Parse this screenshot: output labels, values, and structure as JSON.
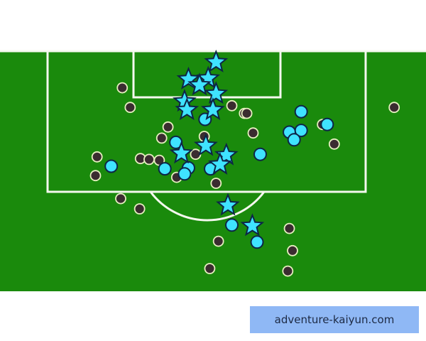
{
  "chart_data": {
    "type": "scatter",
    "title": "",
    "xlabel": "",
    "ylabel": "",
    "units": "metres (x: from goal centre, +right; y: distance from goal line)",
    "grid": false,
    "legend": "none",
    "colors": {
      "pitch": "#1a8a0c",
      "lines": "#f4f8ee",
      "goal": "#3fe3ff",
      "on_target": "#3fe3ff",
      "off_target": "#3a2c30",
      "marker_edge": "#0d2547",
      "off_edge": "#e6f0c0"
    },
    "series": [
      {
        "marker": "star",
        "points": [
          [
            1.2,
            1.3
          ],
          [
            -2.3,
            3.3
          ],
          [
            0.2,
            3.2
          ],
          [
            -0.9,
            4.0
          ],
          [
            1.2,
            5.0
          ],
          [
            -2.8,
            5.9
          ],
          [
            -2.5,
            6.9
          ],
          [
            0.8,
            6.9
          ],
          [
            -0.1,
            11.1
          ],
          [
            -3.2,
            12.0
          ],
          [
            2.5,
            12.2
          ],
          [
            1.7,
            13.3
          ],
          [
            2.7,
            18.1
          ],
          [
            5.8,
            20.5
          ]
        ]
      },
      {
        "marker": "cyan-circle",
        "points": [
          [
            -0.2,
            8.0
          ],
          [
            -3.9,
            10.7
          ],
          [
            -12.1,
            13.5
          ],
          [
            -5.3,
            13.8
          ],
          [
            -2.3,
            13.7
          ],
          [
            -2.8,
            14.4
          ],
          [
            0.5,
            13.8
          ],
          [
            6.8,
            12.1
          ],
          [
            12.0,
            7.1
          ],
          [
            10.5,
            9.5
          ],
          [
            12.0,
            9.3
          ],
          [
            11.1,
            10.4
          ],
          [
            15.3,
            8.6
          ],
          [
            3.2,
            20.4
          ],
          [
            6.4,
            22.4
          ]
        ]
      },
      {
        "marker": "dark-circle",
        "points": [
          [
            -10.7,
            4.3
          ],
          [
            -9.7,
            6.6
          ],
          [
            3.2,
            6.4
          ],
          [
            4.8,
            7.3
          ],
          [
            5.1,
            7.3
          ],
          [
            5.9,
            9.6
          ],
          [
            -4.9,
            8.9
          ],
          [
            -5.7,
            10.2
          ],
          [
            -0.3,
            10.0
          ],
          [
            -13.9,
            12.4
          ],
          [
            -14.1,
            14.6
          ],
          [
            -8.4,
            12.6
          ],
          [
            -7.3,
            12.7
          ],
          [
            -6.0,
            12.8
          ],
          [
            -1.4,
            12.1
          ],
          [
            -3.8,
            14.8
          ],
          [
            1.2,
            15.5
          ],
          [
            14.7,
            8.6
          ],
          [
            16.2,
            10.9
          ],
          [
            23.8,
            6.6
          ],
          [
            -10.9,
            17.3
          ],
          [
            -8.5,
            18.5
          ],
          [
            1.5,
            22.3
          ],
          [
            10.5,
            20.8
          ],
          [
            10.9,
            23.4
          ],
          [
            10.3,
            25.8
          ],
          [
            0.4,
            25.5
          ]
        ]
      }
    ]
  },
  "watermark": {
    "text": "adventure-kaiyun.com",
    "color": "#8fb8f5"
  }
}
